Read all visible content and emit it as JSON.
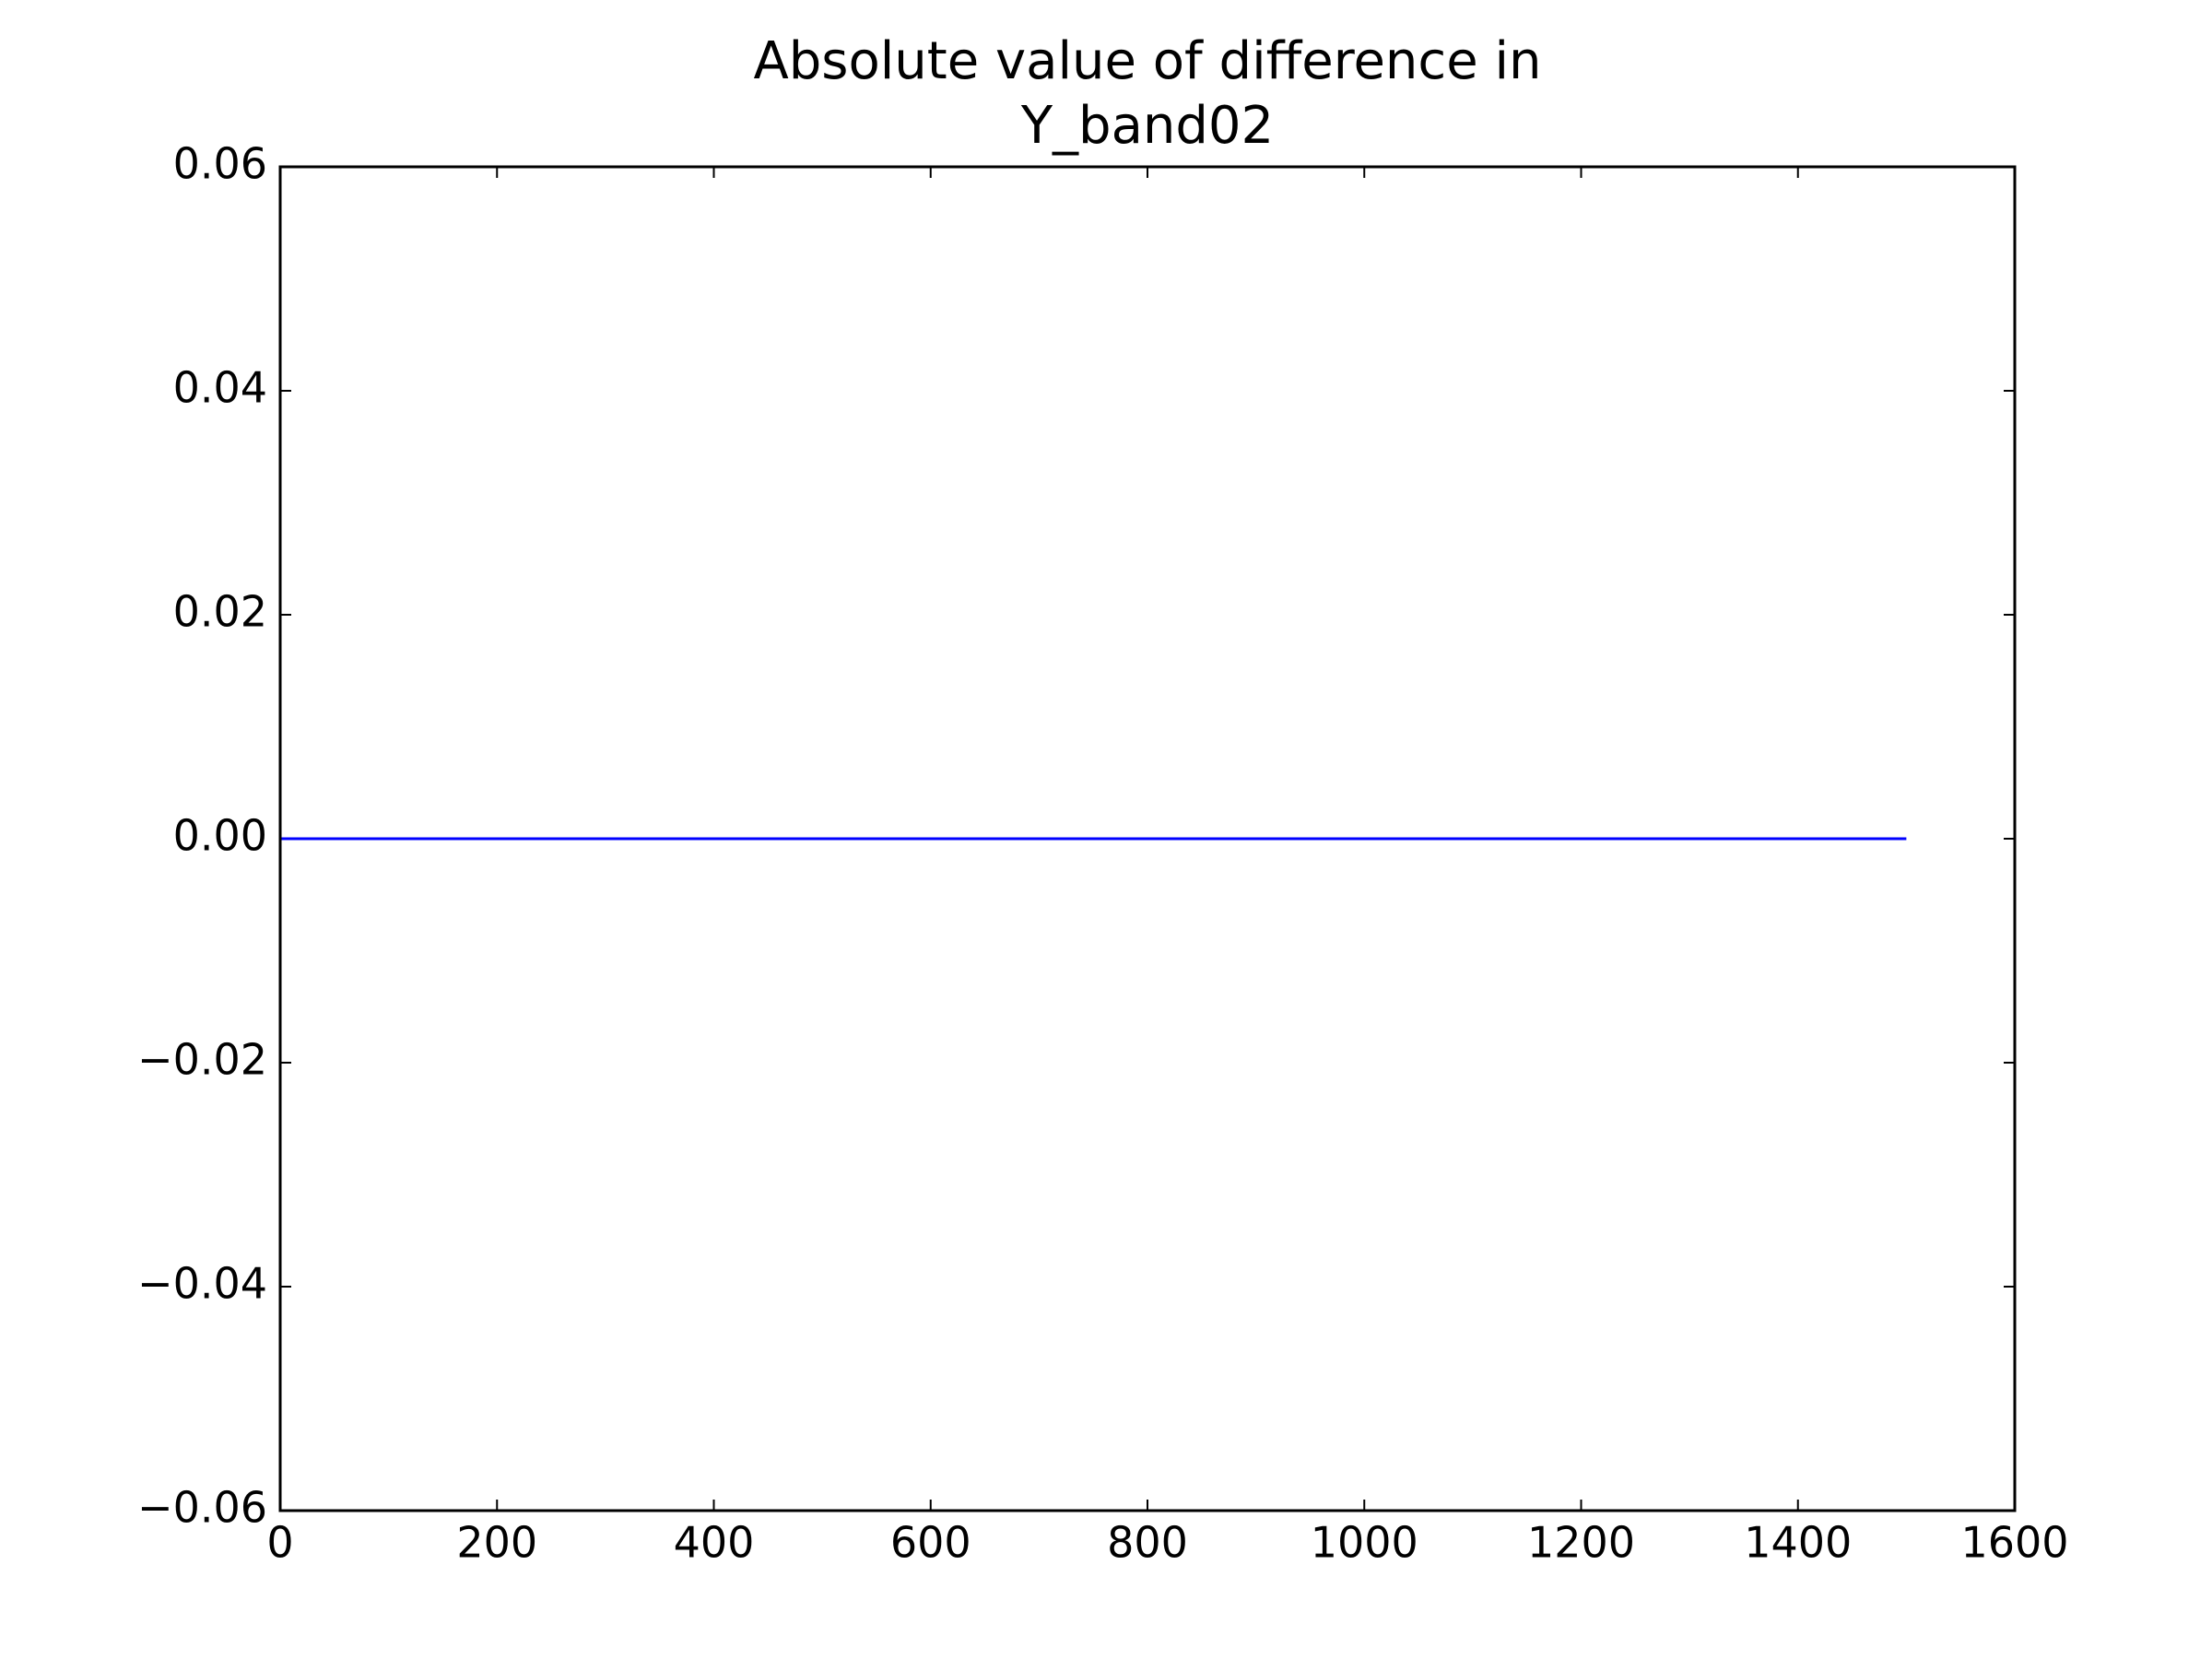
{
  "chart_data": {
    "type": "line",
    "title": [
      "Absolute value of difference in",
      "Y_band02"
    ],
    "x": [
      0,
      1500
    ],
    "values": [
      0,
      0
    ],
    "color": "#0000ff",
    "xlim": [
      0,
      1600
    ],
    "xticks": [
      0,
      200,
      400,
      600,
      800,
      1000,
      1200,
      1400,
      1600
    ],
    "ylim": [
      -0.06,
      0.06
    ],
    "yticks": [
      {
        "value": -0.06,
        "label": "−0.06"
      },
      {
        "value": -0.04,
        "label": "−0.04"
      },
      {
        "value": -0.02,
        "label": "−0.02"
      },
      {
        "value": 0,
        "label": "0.00"
      },
      0.02,
      0.04,
      0.06
    ],
    "grid": false
  }
}
